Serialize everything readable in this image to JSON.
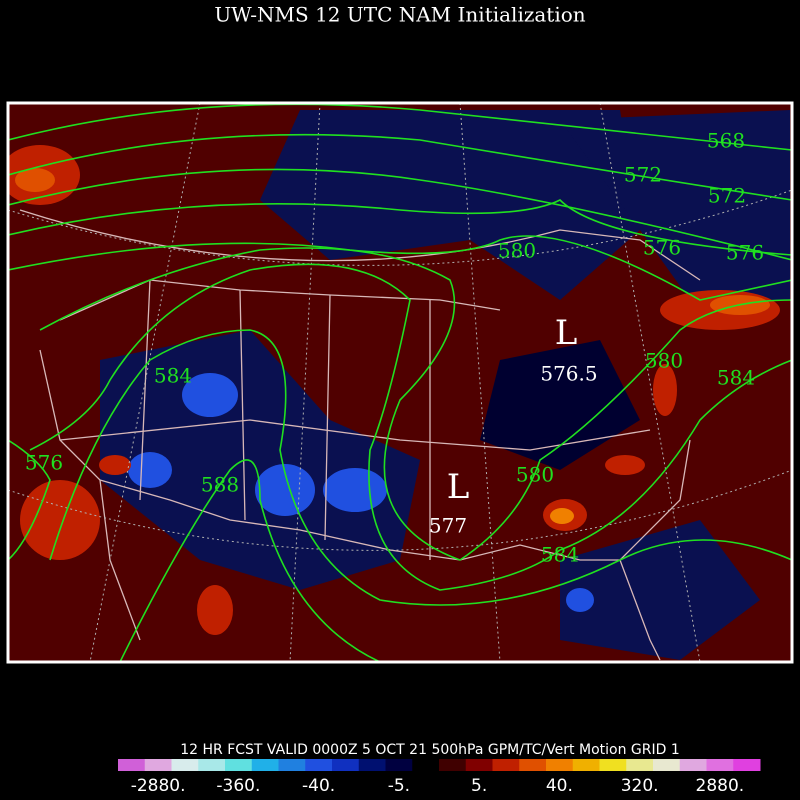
{
  "title": "UW-NMS 12 UTC NAM Initialization",
  "caption": "12 HR FCST VALID 0000Z  5 OCT 21 500hPa GPM/TC/Vert Motion GRID 1",
  "contour_labels": [
    "568",
    "572",
    "572",
    "576",
    "576",
    "580",
    "580",
    "584",
    "584",
    "576",
    "588",
    "580",
    "584"
  ],
  "lows": [
    {
      "symbol": "L",
      "value": "576.5"
    },
    {
      "symbol": "L",
      "value": "577"
    }
  ],
  "colorbar": {
    "colors": [
      "#d060d8",
      "#e0a8e0",
      "#d8ecec",
      "#a8e8e8",
      "#60e0e0",
      "#20b0e8",
      "#2080e0",
      "#2050e0",
      "#1030c0",
      "#001070",
      "#000040",
      "#000000",
      "#400000",
      "#800000",
      "#c02000",
      "#e05000",
      "#f08000",
      "#f0b000",
      "#f0e020",
      "#e8e890",
      "#e8e8d0",
      "#e0a8e0",
      "#e070e0",
      "#e040e0"
    ],
    "labels": [
      "-2880.",
      "-360.",
      "-40.",
      "-5.",
      "5.",
      "40.",
      "320.",
      "2880."
    ]
  }
}
